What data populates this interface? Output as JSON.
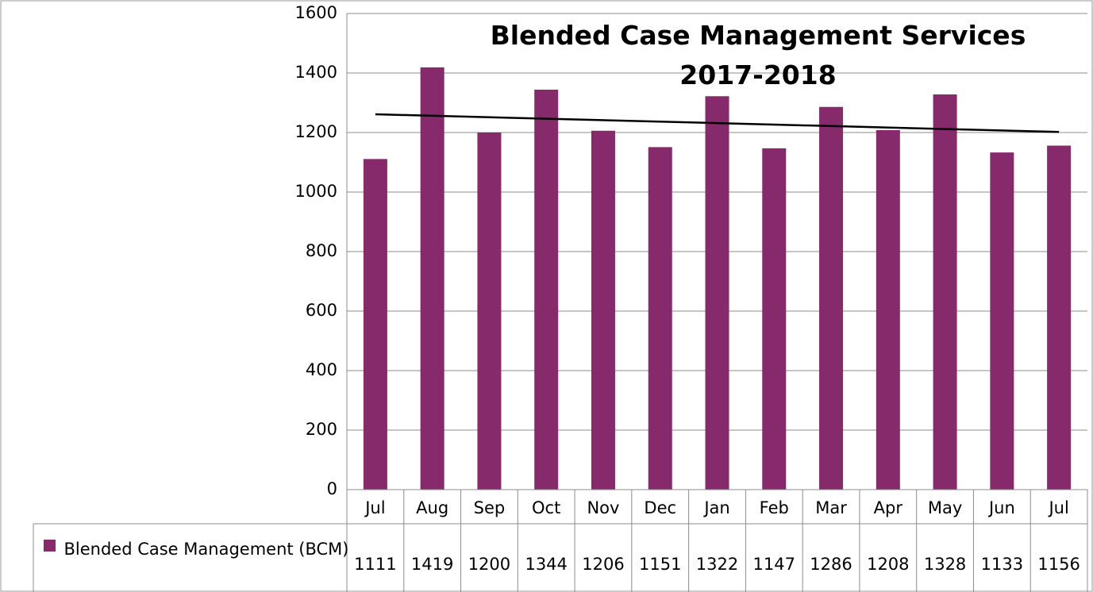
{
  "chart_data": {
    "type": "bar",
    "title": "Blended Case Management Services 2017-2018",
    "categories": [
      "Jul",
      "Aug",
      "Sep",
      "Oct",
      "Nov",
      "Dec",
      "Jan",
      "Feb",
      "Mar",
      "Apr",
      "May",
      "Jun",
      "Jul"
    ],
    "series": [
      {
        "name": "Blended Case Management (BCM)",
        "color": "#862a6c",
        "values": [
          1111,
          1419,
          1200,
          1344,
          1206,
          1151,
          1322,
          1147,
          1286,
          1208,
          1328,
          1133,
          1156
        ]
      }
    ],
    "ylim": [
      0,
      1600
    ],
    "yticks": [
      0,
      200,
      400,
      600,
      800,
      1000,
      1200,
      1400,
      1600
    ],
    "grid": true,
    "trendline": true,
    "data_table": true
  }
}
